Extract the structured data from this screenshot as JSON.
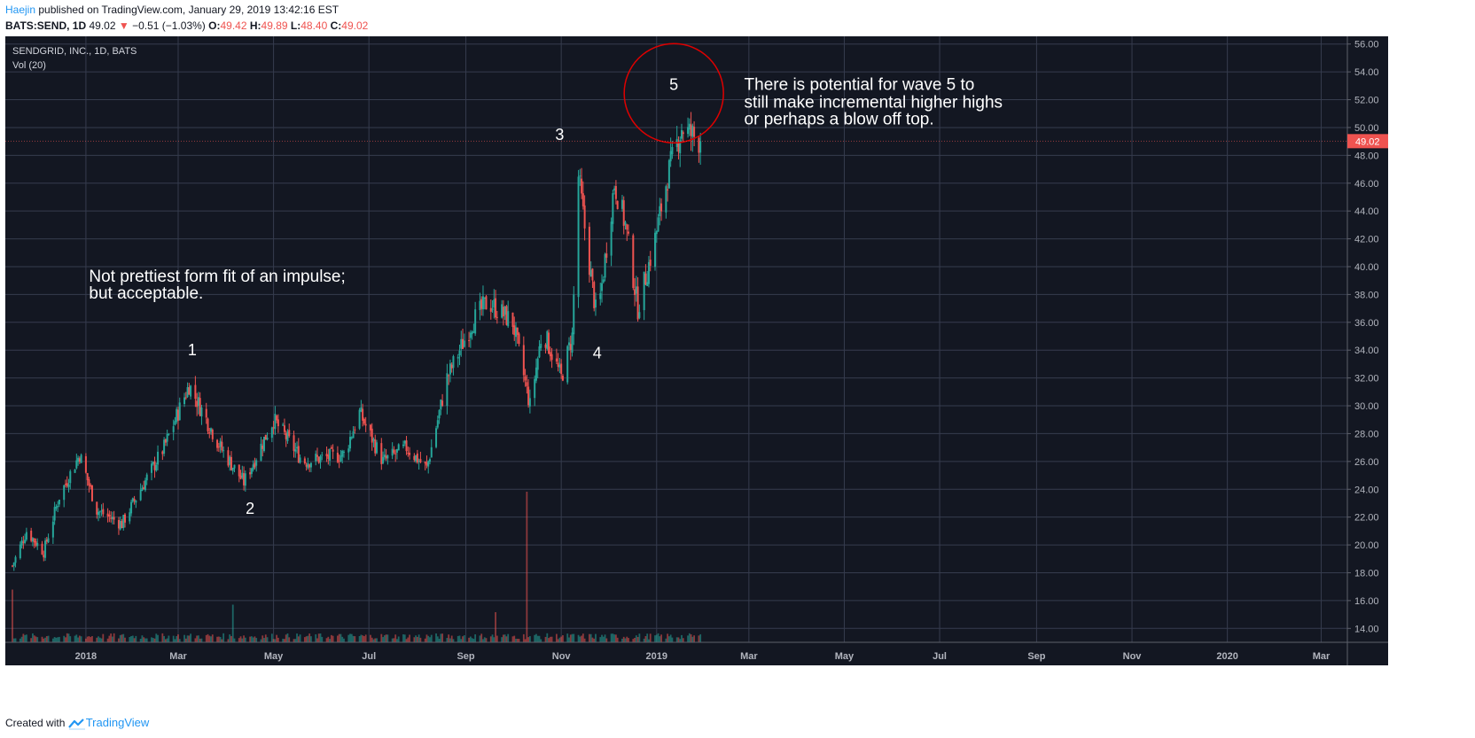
{
  "header": {
    "author": "Haejin",
    "published_text": " published on TradingView.com, January 29, 2019 13:42:16 EST",
    "symbol": "BATS:SEND, 1D",
    "last_price": "49.02",
    "down_arrow": "▼",
    "change": "−0.51 (−1.03%)",
    "o_label": "O:",
    "o_value": "49.42",
    "h_label": "H:",
    "h_value": "49.89",
    "l_label": "L:",
    "l_value": "48.40",
    "c_label": "C:",
    "c_value": "49.02"
  },
  "chart": {
    "instrument_label": "SENDGRID, INC., 1D, BATS",
    "volume_label": "Vol (20)"
  },
  "footer": {
    "created_with": "Created with",
    "brand": "TradingView",
    "logo_icon": "tradingview-logo-icon"
  },
  "colors": {
    "background": "#131722",
    "grid": "#363c4e",
    "up": "#26a69a",
    "down": "#ef5350",
    "text": "#ffffff",
    "axis_text": "#b2b5be",
    "circle": "#e00000"
  },
  "chart_data": {
    "type": "candlestick",
    "title": "SENDGRID, INC., 1D, BATS",
    "ylim": [
      13.0,
      56.3
    ],
    "y_ticks": [
      "56.00",
      "54.00",
      "52.00",
      "50.00",
      "48.00",
      "46.00",
      "44.00",
      "42.00",
      "40.00",
      "38.00",
      "36.00",
      "34.00",
      "32.00",
      "30.00",
      "28.00",
      "26.00",
      "24.00",
      "22.00",
      "20.00",
      "18.00",
      "16.00",
      "14.00"
    ],
    "y_tick_values": [
      56,
      54,
      52,
      50,
      48,
      46,
      44,
      42,
      40,
      38,
      36,
      34,
      32,
      30,
      28,
      26,
      24,
      22,
      20,
      18,
      16,
      14
    ],
    "x_ticks": [
      "2018",
      "Mar",
      "May",
      "Jul",
      "Sep",
      "Nov",
      "2019",
      "Mar",
      "May",
      "Jul",
      "Sep",
      "Nov",
      "2020",
      "Mar"
    ],
    "x_tick_months": [
      "2018-01",
      "2018-03",
      "2018-05",
      "2018-07",
      "2018-09",
      "2018-11",
      "2019-01",
      "2019-03",
      "2019-05",
      "2019-07",
      "2019-09",
      "2019-11",
      "2020-01",
      "2020-03"
    ],
    "x_range": [
      "2017-11-15",
      "2020-03-03"
    ],
    "last_price_tag": "49.02",
    "last_price": 49.02,
    "grid": true,
    "price_path": [
      {
        "date": "2017-11-15",
        "close": 18.5
      },
      {
        "date": "2017-11-24",
        "close": 21.0
      },
      {
        "date": "2017-12-05",
        "close": 19.5
      },
      {
        "date": "2017-12-15",
        "close": 23.5
      },
      {
        "date": "2017-12-28",
        "close": 26.5
      },
      {
        "date": "2018-01-08",
        "close": 22.5
      },
      {
        "date": "2018-01-24",
        "close": 21.5
      },
      {
        "date": "2018-02-05",
        "close": 24.0
      },
      {
        "date": "2018-02-20",
        "close": 27.0
      },
      {
        "date": "2018-03-08",
        "close": 31.5
      },
      {
        "date": "2018-03-28",
        "close": 27.0
      },
      {
        "date": "2018-04-12",
        "close": 24.5
      },
      {
        "date": "2018-05-01",
        "close": 29.0
      },
      {
        "date": "2018-05-20",
        "close": 26.0
      },
      {
        "date": "2018-06-15",
        "close": 26.5
      },
      {
        "date": "2018-06-25",
        "close": 29.5
      },
      {
        "date": "2018-07-10",
        "close": 26.0
      },
      {
        "date": "2018-07-25",
        "close": 27.0
      },
      {
        "date": "2018-08-07",
        "close": 25.5
      },
      {
        "date": "2018-08-20",
        "close": 32.0
      },
      {
        "date": "2018-09-05",
        "close": 36.0
      },
      {
        "date": "2018-09-15",
        "close": 37.5
      },
      {
        "date": "2018-10-01",
        "close": 36.0
      },
      {
        "date": "2018-10-12",
        "close": 30.0
      },
      {
        "date": "2018-10-20",
        "close": 35.5
      },
      {
        "date": "2018-11-01",
        "close": 32.0
      },
      {
        "date": "2018-11-08",
        "close": 35.0
      },
      {
        "date": "2018-11-12",
        "close": 46.5
      },
      {
        "date": "2018-11-18",
        "close": 41.0
      },
      {
        "date": "2018-11-24",
        "close": 36.0
      },
      {
        "date": "2018-12-05",
        "close": 46.0
      },
      {
        "date": "2018-12-12",
        "close": 43.0
      },
      {
        "date": "2018-12-20",
        "close": 37.0
      },
      {
        "date": "2018-12-31",
        "close": 42.0
      },
      {
        "date": "2019-01-08",
        "close": 46.5
      },
      {
        "date": "2019-01-17",
        "close": 50.0
      },
      {
        "date": "2019-01-29",
        "close": 49.02
      }
    ],
    "volume_spikes": [
      {
        "date": "2017-11-15",
        "volume_rel": 0.35
      },
      {
        "date": "2018-04-05",
        "volume_rel": 0.25
      },
      {
        "date": "2018-10-10",
        "volume_rel": 1.0
      },
      {
        "date": "2018-09-20",
        "volume_rel": 0.2
      },
      {
        "date": "2018-10-28",
        "volume_rel": 0.22
      }
    ],
    "annotations": [
      {
        "text": "1",
        "date": "2018-03-10",
        "price": 34.0
      },
      {
        "text": "2",
        "date": "2018-04-16",
        "price": 22.6
      },
      {
        "text": "3",
        "date": "2018-10-31",
        "price": 49.5
      },
      {
        "text": "4",
        "date": "2018-11-24",
        "price": 33.8
      },
      {
        "text": "5",
        "date": "2019-01-12",
        "price": 53.1
      },
      {
        "text": "Not prettiest form fit of an impulse;",
        "date": "2018-01-03",
        "price": 39.3
      },
      {
        "text": "but acceptable.",
        "date": "2018-01-03",
        "price": 38.1
      },
      {
        "text": "There is potential for wave 5 to",
        "date": "2019-02-26",
        "price": 53.1
      },
      {
        "text": "still make incremental higher highs",
        "date": "2019-02-26",
        "price": 51.8
      },
      {
        "text": "or perhaps a blow off top.",
        "date": "2019-02-26",
        "price": 50.6
      }
    ]
  }
}
